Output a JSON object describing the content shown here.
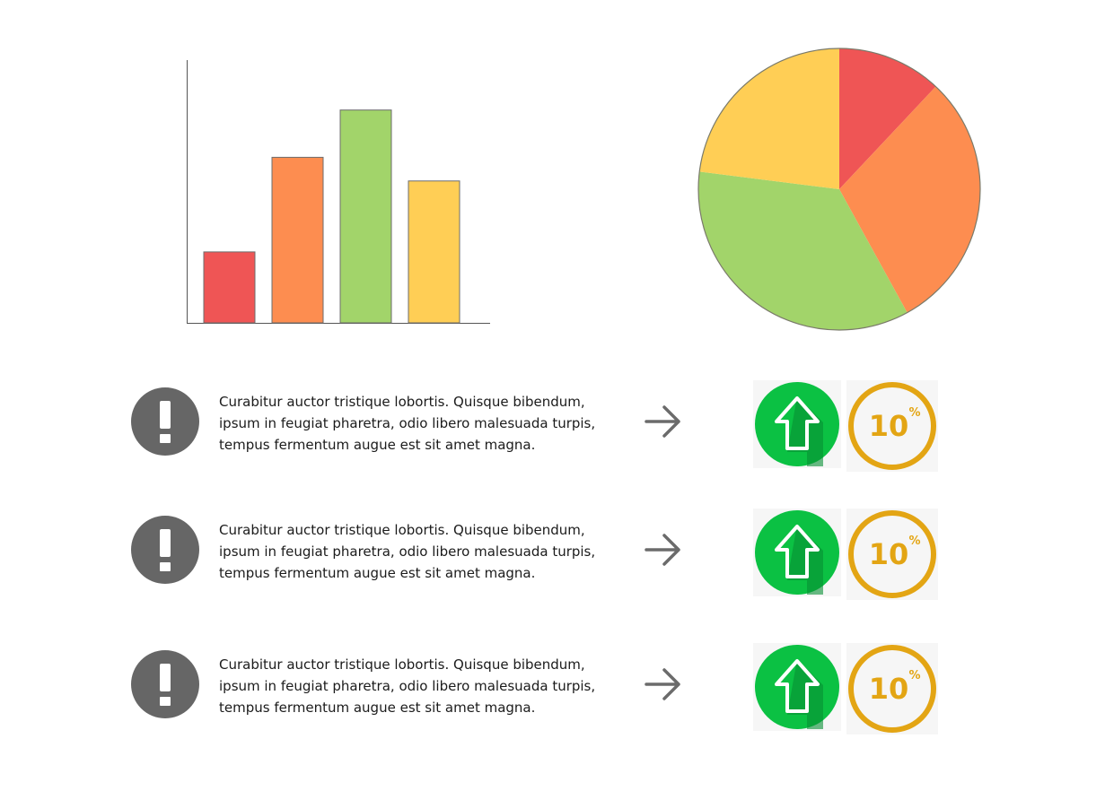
{
  "chart_data": [
    {
      "type": "bar",
      "categories": [
        "",
        "",
        "",
        ""
      ],
      "values": [
        27,
        63,
        81,
        54
      ],
      "ylim": [
        0,
        100
      ],
      "grid": false,
      "colors": [
        "#EF5555",
        "#FD8D50",
        "#A2D46A",
        "#FFCE55"
      ]
    },
    {
      "type": "pie",
      "values": [
        12,
        30,
        35,
        23
      ],
      "colors": [
        "#EF5555",
        "#FD8D50",
        "#A2D46A",
        "#FFCE55"
      ]
    }
  ],
  "rows": [
    {
      "text": [
        "Curabitur auctor tristique lobortis. Quisque bibendum,",
        "ipsum in feugiat pharetra, odio libero malesuada turpis,",
        "tempus fermentum augue est sit amet magna."
      ],
      "badge_number": "10",
      "badge_unit": "%"
    },
    {
      "text": [
        "Curabitur auctor tristique lobortis. Quisque bibendum,",
        "ipsum in feugiat pharetra, odio libero malesuada turpis,",
        "tempus fermentum augue est sit amet magna."
      ],
      "badge_number": "10",
      "badge_unit": "%"
    },
    {
      "text": [
        "Curabitur auctor tristique lobortis. Quisque bibendum,",
        "ipsum in feugiat pharetra, odio libero malesuada turpis,",
        "tempus fermentum augue est sit amet magna."
      ],
      "badge_number": "10",
      "badge_unit": "%"
    }
  ],
  "icons": {
    "alert": "exclamation-icon",
    "arrow": "arrow-right-icon",
    "trend": "arrow-up-icon",
    "badge": "percent-badge"
  },
  "colors": {
    "alert_bg": "#666666",
    "arrow": "#6b6b6b",
    "green": "#0BC143",
    "green_shadow": "#078F33",
    "gold": "#E3A514",
    "tile_bg": "#F6F6F6"
  }
}
